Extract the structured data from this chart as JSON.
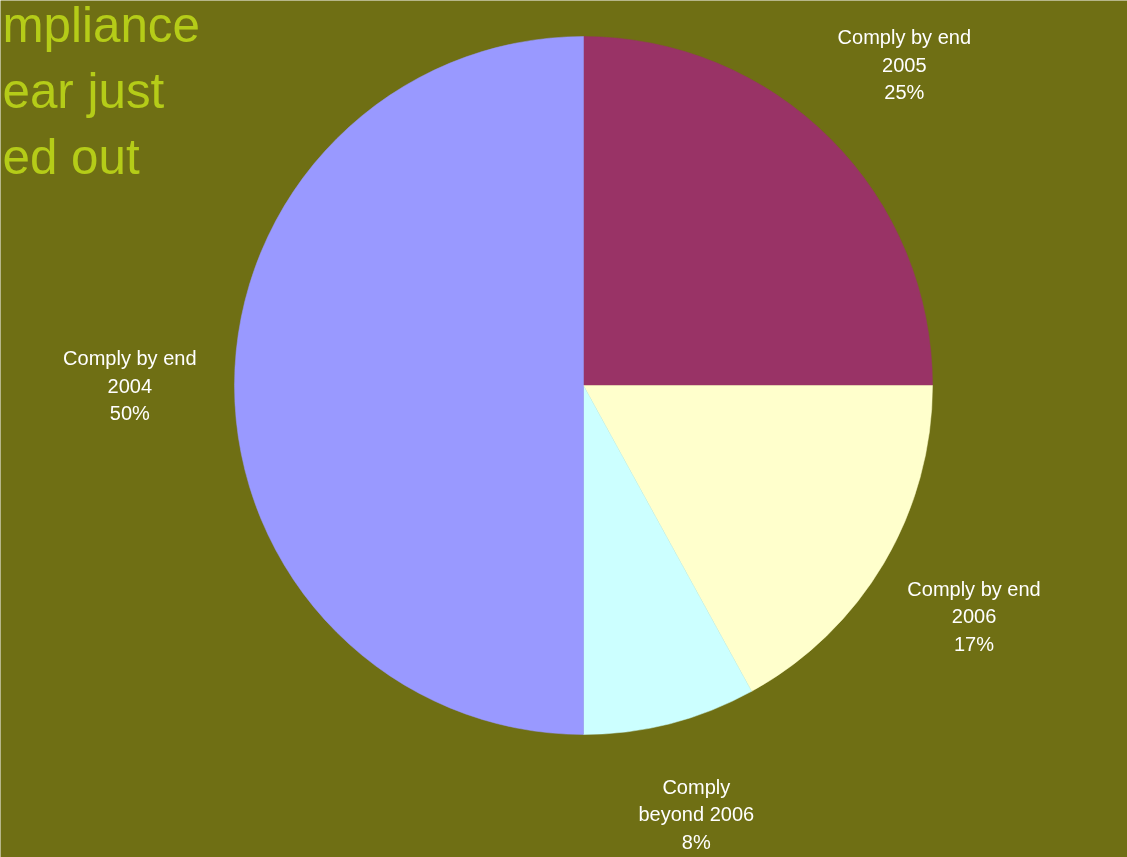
{
  "chart_data": {
    "type": "pie",
    "title": "mpliance\near just\ned out",
    "categories": [
      "Comply by end\n2005",
      "Comply by end\n2006",
      "Comply\nbeyond 2006",
      "Comply by end\n2004"
    ],
    "values": [
      25,
      17,
      8,
      50
    ],
    "value_labels": [
      "25%",
      "17%",
      "8%",
      "50%"
    ],
    "colors": [
      "#993366",
      "#ffffcc",
      "#ccffff",
      "#9999ff"
    ]
  }
}
